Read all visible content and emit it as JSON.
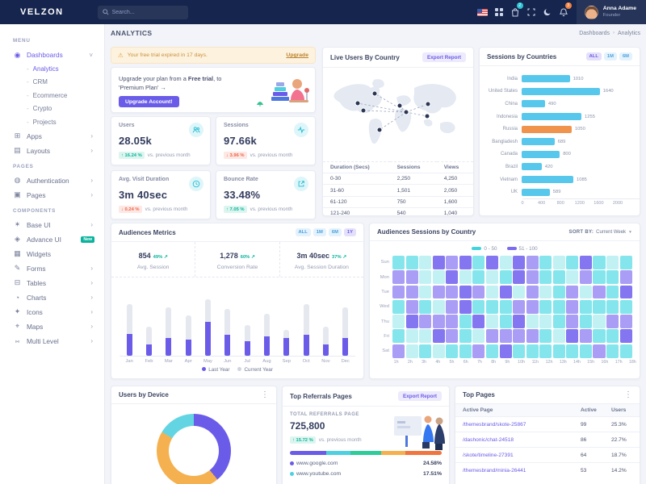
{
  "colors": {
    "primary": "#6a5ce8",
    "bar_cyan": "#58c7ec",
    "bar_highlight": "#f0944d",
    "gray_bar": "#e5e8ef",
    "success": "#0ab39c",
    "danger": "#f06548",
    "heat_c1": "#c2f1f4",
    "heat_c2": "#84e6ec",
    "heat_p1": "#a99df5",
    "heat_p2": "#8476f0"
  },
  "navbar": {
    "logo": "VELZON",
    "search_placeholder": "Search...",
    "cart_badge": "2",
    "alerts_badge": "3",
    "user": {
      "name": "Anna Adame",
      "role": "Founder"
    }
  },
  "sidebar": {
    "sections": [
      {
        "label": "MENU",
        "items": [
          {
            "label": "Dashboards",
            "icon": "dashboard-icon",
            "active": true,
            "expanded": true,
            "children": [
              {
                "label": "Analytics",
                "active": true
              },
              {
                "label": "CRM"
              },
              {
                "label": "Ecommerce"
              },
              {
                "label": "Crypto"
              },
              {
                "label": "Projects"
              }
            ]
          },
          {
            "label": "Apps",
            "icon": "apps-icon",
            "arrow": true
          },
          {
            "label": "Layouts",
            "icon": "layouts-icon",
            "arrow": true
          }
        ]
      },
      {
        "label": "PAGES",
        "items": [
          {
            "label": "Authentication",
            "icon": "authentication-icon",
            "arrow": true
          },
          {
            "label": "Pages",
            "icon": "pages-icon",
            "arrow": true
          }
        ]
      },
      {
        "label": "COMPONENTS",
        "items": [
          {
            "label": "Base UI",
            "icon": "base-ui-icon",
            "arrow": true
          },
          {
            "label": "Advance UI",
            "icon": "advance-ui-icon",
            "badge": "New"
          },
          {
            "label": "Widgets",
            "icon": "widgets-icon"
          },
          {
            "label": "Forms",
            "icon": "forms-icon",
            "arrow": true
          },
          {
            "label": "Tables",
            "icon": "tables-icon",
            "arrow": true
          },
          {
            "label": "Charts",
            "icon": "charts-icon",
            "arrow": true
          },
          {
            "label": "Icons",
            "icon": "icons-icon",
            "arrow": true
          },
          {
            "label": "Maps",
            "icon": "maps-icon",
            "arrow": true
          },
          {
            "label": "Multi Level",
            "icon": "multi-level-icon",
            "arrow": true
          }
        ]
      }
    ]
  },
  "page": {
    "title": "ANALYTICS",
    "breadcrumb": [
      "Dashboards",
      "Analytics"
    ]
  },
  "alert": {
    "text": "Your free trial expired in 17 days.",
    "link": "Upgrade"
  },
  "upgrade_card": {
    "text_prefix": "Upgrade your plan from a ",
    "text_bold": "Free trial",
    "text_suffix": ", to 'Premium Plan'  →",
    "button": "Upgrade Account!"
  },
  "stats": [
    {
      "label": "Users",
      "value": "28.05k",
      "delta": "16.24 %",
      "direction": "up",
      "suffix": "vs. previous month",
      "icon": "users-icon"
    },
    {
      "label": "Sessions",
      "value": "97.66k",
      "delta": "3.96 %",
      "direction": "down",
      "suffix": "vs. previous month",
      "icon": "activity-icon"
    },
    {
      "label": "Avg. Visit Duration",
      "value": "3m 40sec",
      "delta": "0.24 %",
      "direction": "down",
      "suffix": "vs. previous month",
      "icon": "clock-icon"
    },
    {
      "label": "Bounce Rate",
      "value": "33.48%",
      "delta": "7.05 %",
      "direction": "up",
      "suffix": "vs. previous month",
      "icon": "external-link-icon"
    }
  ],
  "live_users": {
    "title": "Live Users By Country",
    "button": "Export Report",
    "table": {
      "headers": [
        "Duration (Secs)",
        "Sessions",
        "Views"
      ],
      "rows": [
        [
          "0-30",
          "2,250",
          "4,250"
        ],
        [
          "31-60",
          "1,501",
          "2,050"
        ],
        [
          "61-120",
          "750",
          "1,600"
        ],
        [
          "121-240",
          "540",
          "1,040"
        ]
      ]
    }
  },
  "sessions_by_countries": {
    "title": "Sessions by Countries",
    "filters": [
      "ALL",
      "1M",
      "6M"
    ],
    "active_filter": "ALL"
  },
  "audiences_metrics": {
    "title": "Audiences Metrics",
    "filters": [
      "ALL",
      "1M",
      "6M",
      "1Y"
    ],
    "active_filter": "1Y",
    "stats": [
      {
        "value": "854",
        "delta": "49%",
        "label": "Avg. Session"
      },
      {
        "value": "1,278",
        "delta": "60%",
        "label": "Conversion Rate"
      },
      {
        "value": "3m 40sec",
        "delta": "37%",
        "label": "Avg. Session Duration"
      }
    ]
  },
  "heatmap_card": {
    "title": "Audiences Sessions by Country",
    "sort_label": "SORT BY:",
    "sort_value": "Current Week"
  },
  "users_by_device": {
    "title": "Users by Device"
  },
  "top_referrals": {
    "title": "Top Referrals Pages",
    "button": "Export Report",
    "caption": "TOTAL REFERRALS PAGE",
    "value": "725,800",
    "delta": "15.72 %",
    "direction": "up",
    "suffix": "vs. previous month",
    "segments": [
      {
        "color": "#6a5ce8",
        "pct": 24
      },
      {
        "color": "#4fd0e0",
        "pct": 16
      },
      {
        "color": "#2ecc9b",
        "pct": 20
      },
      {
        "color": "#f5b14f",
        "pct": 16
      },
      {
        "color": "#f0753f",
        "pct": 24
      }
    ],
    "rows": [
      {
        "dot_color": "#6a5ce8",
        "label": "www.google.com",
        "value": "24.58%"
      },
      {
        "dot_color": "#4fd0e0",
        "label": "www.youtube.com",
        "value": "17.51%"
      }
    ]
  },
  "top_pages": {
    "title": "Top Pages",
    "headers": [
      "Active Page",
      "Active",
      "Users"
    ],
    "rows": [
      [
        "/themesbrand/skote-25867",
        "99",
        "25.3%"
      ],
      [
        "/dashonic/chat-24518",
        "86",
        "22.7%"
      ],
      [
        "/skote/timeline-27391",
        "64",
        "18.7%"
      ],
      [
        "/themesbrand/minia-26441",
        "53",
        "14.2%"
      ]
    ]
  },
  "chart_data": [
    {
      "id": "sessions_by_countries",
      "type": "bar",
      "orientation": "horizontal",
      "categories": [
        "India",
        "United States",
        "China",
        "Indonesia",
        "Russia",
        "Bangladesh",
        "Canada",
        "Brazil",
        "Vietnam",
        "UK"
      ],
      "values": [
        1010,
        1640,
        490,
        1255,
        1050,
        689,
        800,
        420,
        1085,
        589
      ],
      "highlight_category": "Russia",
      "xlim": [
        0,
        2000
      ],
      "xticks": [
        "0",
        "400",
        "800",
        "1200",
        "1600",
        "2000"
      ],
      "grid": false
    },
    {
      "id": "audiences_metrics_monthly",
      "type": "bar",
      "stacked": true,
      "categories": [
        "Jan",
        "Feb",
        "Mar",
        "Apr",
        "May",
        "Jun",
        "Jul",
        "Aug",
        "Sep",
        "Oct",
        "Nov",
        "Dec"
      ],
      "series": [
        {
          "name": "Last Year",
          "values": [
            34,
            18,
            28,
            25,
            52,
            33,
            22,
            30,
            27,
            33,
            17,
            28
          ]
        },
        {
          "name": "Current Year",
          "values": [
            46,
            27,
            47,
            37,
            36,
            39,
            25,
            35,
            13,
            47,
            28,
            47
          ]
        }
      ],
      "legend_position": "bottom",
      "ylim": [
        0,
        100
      ]
    },
    {
      "id": "audiences_sessions_by_country",
      "type": "heatmap",
      "rows": [
        "Sun",
        "Mon",
        "Tue",
        "Wed",
        "Thu",
        "Fri",
        "Sat"
      ],
      "columns": [
        "1h",
        "2h",
        "3h",
        "4h",
        "5h",
        "6h",
        "7h",
        "8h",
        "9h",
        "10h",
        "11h",
        "12h",
        "13h",
        "14h",
        "15h",
        "16h",
        "17h",
        "18h"
      ],
      "legend": [
        {
          "label": "0 - 50",
          "color": "#41d3de"
        },
        {
          "label": "51 - 100",
          "color": "#7a6cf0"
        }
      ],
      "values": [
        [
          40,
          45,
          30,
          80,
          70,
          85,
          50,
          90,
          25,
          85,
          75,
          40,
          30,
          45,
          80,
          35,
          30,
          35
        ],
        [
          75,
          70,
          30,
          25,
          80,
          30,
          35,
          25,
          45,
          85,
          70,
          35,
          40,
          30,
          75,
          45,
          40,
          70
        ],
        [
          70,
          65,
          30,
          75,
          70,
          80,
          70,
          25,
          80,
          30,
          70,
          25,
          40,
          65,
          30,
          70,
          45,
          80
        ],
        [
          45,
          75,
          35,
          30,
          70,
          80,
          35,
          40,
          45,
          70,
          70,
          45,
          40,
          75,
          50,
          40,
          35,
          45
        ],
        [
          30,
          85,
          70,
          75,
          70,
          35,
          80,
          30,
          45,
          80,
          30,
          25,
          40,
          70,
          35,
          30,
          75,
          70
        ],
        [
          35,
          30,
          30,
          80,
          70,
          35,
          30,
          70,
          75,
          70,
          75,
          35,
          30,
          80,
          70,
          40,
          45,
          80
        ],
        [
          75,
          30,
          35,
          30,
          40,
          45,
          70,
          35,
          80,
          50,
          45,
          40,
          45,
          50,
          35,
          75,
          45,
          35
        ]
      ]
    },
    {
      "id": "users_by_device",
      "type": "donut",
      "slices": [
        {
          "pct": 39,
          "color": "#6a5ce8"
        },
        {
          "pct": 44.5,
          "color": "#f5b14f"
        },
        {
          "pct": 16.5,
          "color": "#63d5e2"
        }
      ]
    }
  ]
}
